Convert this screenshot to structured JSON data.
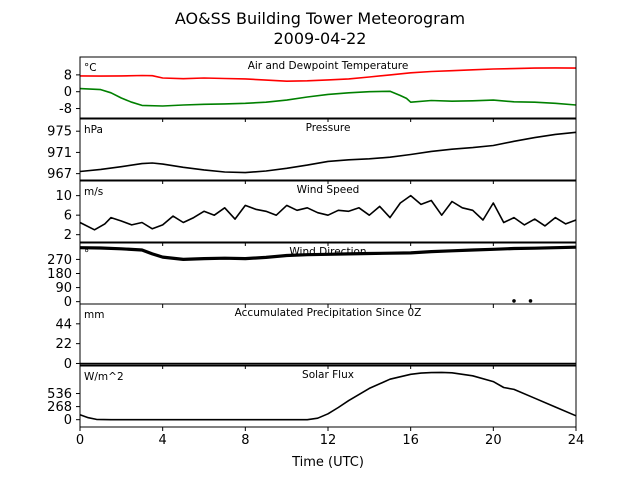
{
  "figure": {
    "title_line1": "AO&SS Building Tower Meteorogram",
    "title_line2": "2009-04-22",
    "xlabel": "Time (UTC)"
  },
  "chart_data": {
    "type": "line",
    "xlim": [
      0,
      24
    ],
    "x_ticks": [
      0,
      4,
      8,
      12,
      16,
      20,
      24
    ],
    "panels": [
      {
        "title": "Air and Dewpoint Temperature",
        "unit": "°C",
        "ylim": [
          -12.5,
          16.5
        ],
        "y_ticks": [
          -8,
          0,
          8
        ],
        "series": [
          {
            "color": "#ff0000",
            "x": [
              0,
              1,
              2,
              3,
              3.5,
              4,
              5,
              6,
              7,
              8,
              9,
              10,
              11,
              12,
              13,
              14,
              15,
              16,
              17,
              18,
              19,
              20,
              21,
              22,
              23,
              24
            ],
            "y": [
              7.5,
              7.4,
              7.5,
              7.7,
              7.6,
              6.5,
              6.2,
              6.5,
              6.3,
              6.1,
              5.5,
              5.0,
              5.2,
              5.6,
              6.1,
              7.0,
              8.0,
              9.0,
              9.6,
              10.0,
              10.4,
              10.8,
              11.0,
              11.2,
              11.3,
              11.2
            ]
          },
          {
            "color": "#008000",
            "x": [
              0,
              1,
              1.5,
              2,
              2.5,
              3,
              4,
              5,
              6,
              7,
              8,
              9,
              10,
              11,
              12,
              13,
              14,
              15,
              15.5,
              15.8,
              16,
              17,
              18,
              19,
              20,
              21,
              22,
              23,
              24
            ],
            "y": [
              1.5,
              1.0,
              -0.5,
              -3.0,
              -5.0,
              -6.5,
              -6.8,
              -6.3,
              -6.0,
              -5.8,
              -5.5,
              -5.0,
              -4.0,
              -2.5,
              -1.3,
              -0.5,
              0.0,
              0.2,
              -1.8,
              -3.2,
              -5.0,
              -4.2,
              -4.5,
              -4.3,
              -4.0,
              -4.8,
              -5.0,
              -5.5,
              -6.3
            ]
          }
        ]
      },
      {
        "title": "Pressure",
        "unit": "hPa",
        "ylim": [
          965.8,
          977.3
        ],
        "y_ticks": [
          967,
          971,
          975
        ],
        "series": [
          {
            "color": "#000000",
            "x": [
              0,
              1,
              2,
              3,
              3.5,
              4,
              5,
              6,
              7,
              8,
              9,
              10,
              11,
              12,
              13,
              14,
              15,
              16,
              17,
              18,
              19,
              20,
              21,
              22,
              23,
              24
            ],
            "y": [
              967.4,
              967.8,
              968.3,
              968.9,
              969.0,
              968.8,
              968.2,
              967.7,
              967.3,
              967.2,
              967.5,
              968.0,
              968.6,
              969.3,
              969.6,
              969.8,
              970.1,
              970.6,
              971.2,
              971.6,
              971.9,
              972.3,
              973.1,
              973.8,
              974.4,
              974.8
            ]
          }
        ]
      },
      {
        "title": "Wind Speed",
        "unit": "m/s",
        "ylim": [
          0.5,
          13.0
        ],
        "y_ticks": [
          2,
          6,
          10
        ],
        "series": [
          {
            "color": "#000000",
            "x": [
              0,
              0.7,
              1.2,
              1.5,
              2,
              2.5,
              3,
              3.5,
              4,
              4.5,
              5,
              5.5,
              6,
              6.5,
              7,
              7.5,
              8,
              8.5,
              9,
              9.5,
              10,
              10.5,
              11,
              11.5,
              12,
              12.5,
              13,
              13.5,
              14,
              14.5,
              15,
              15.5,
              16,
              16.5,
              17,
              17.5,
              18,
              18.5,
              19,
              19.5,
              20,
              20.5,
              21,
              21.5,
              22,
              22.5,
              23,
              23.5,
              24
            ],
            "y": [
              4.5,
              3.0,
              4.2,
              5.5,
              4.8,
              4.0,
              4.5,
              3.2,
              4.0,
              5.8,
              4.5,
              5.5,
              6.8,
              6.0,
              7.5,
              5.2,
              8.0,
              7.2,
              6.8,
              6.0,
              8.0,
              7.0,
              7.5,
              6.5,
              6.0,
              7.0,
              6.8,
              7.5,
              6.0,
              7.8,
              5.5,
              8.5,
              10.0,
              8.2,
              9.0,
              6.0,
              8.8,
              7.5,
              7.0,
              5.0,
              8.5,
              4.5,
              5.5,
              4.0,
              5.2,
              3.8,
              5.5,
              4.2,
              5.0
            ]
          }
        ]
      },
      {
        "title": "Wind Direction",
        "unit": "°",
        "ylim": [
          -15,
          375
        ],
        "y_ticks": [
          0,
          90,
          180,
          270
        ],
        "series": [
          {
            "color": "#000000",
            "x": [
              0,
              1,
              2,
              3,
              3.5,
              4,
              5,
              6,
              7,
              8,
              9,
              10,
              11,
              12,
              13,
              14,
              15,
              16,
              17,
              18,
              19,
              20,
              21,
              22,
              23,
              24
            ],
            "y": [
              345,
              343,
              338,
              330,
              305,
              285,
              270,
              275,
              278,
              275,
              283,
              295,
              300,
              303,
              305,
              308,
              310,
              312,
              320,
              325,
              330,
              335,
              340,
              342,
              345,
              348
            ]
          },
          {
            "color": "#000000",
            "type": "points",
            "x": [
              21.0,
              21.8
            ],
            "y": [
              5,
              5
            ]
          }
        ]
      },
      {
        "title": "Accumulated Precipitation Since 0Z",
        "unit": "mm",
        "ylim": [
          -1.7,
          66
        ],
        "y_ticks": [
          0,
          22,
          44
        ],
        "series": [
          {
            "color": "#000000",
            "x": [
              0,
              24
            ],
            "y": [
              0,
              0
            ]
          }
        ]
      },
      {
        "title": "Solar Flux",
        "unit": "W/m^2",
        "ylim": [
          -150,
          1100
        ],
        "y_ticks": [
          0,
          268,
          536
        ],
        "series": [
          {
            "color": "#000000",
            "x": [
              0,
              0.4,
              0.8,
              1.5,
              2,
              4,
              6,
              8,
              10,
              11,
              11.5,
              12,
              12.5,
              13,
              14,
              15,
              16,
              16.5,
              17,
              17.5,
              18,
              19,
              20,
              20.5,
              21,
              22,
              23,
              24
            ],
            "y": [
              100,
              40,
              5,
              0,
              0,
              0,
              0,
              0,
              0,
              0,
              30,
              120,
              250,
              390,
              640,
              830,
              930,
              955,
              965,
              968,
              960,
              900,
              780,
              660,
              620,
              440,
              260,
              80
            ]
          }
        ]
      }
    ]
  }
}
